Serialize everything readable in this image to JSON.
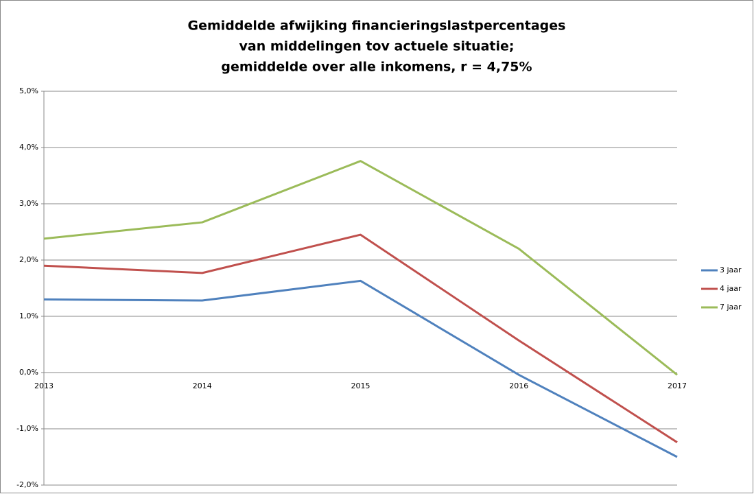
{
  "chart_data": {
    "type": "line",
    "title": [
      "Gemiddelde afwijking financieringslastpercentages",
      "van middelingen tov actuele situatie;",
      "gemiddelde over alle inkomens, r = 4,75%"
    ],
    "categories": [
      "2013",
      "2014",
      "2015",
      "2016",
      "2017"
    ],
    "series": [
      {
        "name": "3 jaar",
        "color": "#4f81bd",
        "values": [
          1.3,
          1.28,
          1.63,
          -0.04,
          -1.5
        ]
      },
      {
        "name": "4 jaar",
        "color": "#c0504d",
        "values": [
          1.9,
          1.77,
          2.45,
          0.57,
          -1.24
        ]
      },
      {
        "name": "7 jaar",
        "color": "#9bbb59",
        "values": [
          2.38,
          2.67,
          3.76,
          2.2,
          -0.04
        ]
      }
    ],
    "ylim": [
      -2,
      5
    ],
    "yticks": [
      {
        "value": -2,
        "label": "-2,0%"
      },
      {
        "value": -1,
        "label": "-1,0%"
      },
      {
        "value": 0,
        "label": "0,0%"
      },
      {
        "value": 1,
        "label": "1,0%"
      },
      {
        "value": 2,
        "label": "2,0%"
      },
      {
        "value": 3,
        "label": "3,0%"
      },
      {
        "value": 4,
        "label": "4,0%"
      },
      {
        "value": 5,
        "label": "5,0%"
      }
    ],
    "grid": true,
    "legend": "right"
  }
}
